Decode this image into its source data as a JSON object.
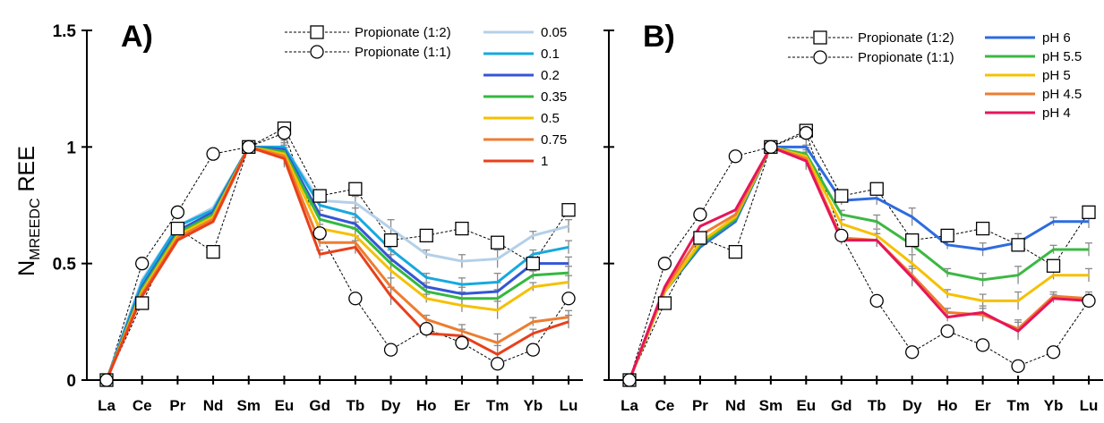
{
  "figure": {
    "ylabel_main": "N",
    "ylabel_sub": "MREEDC",
    "ylabel_tail": " REE"
  },
  "chart_data": [
    {
      "type": "line",
      "panel_label": "A)",
      "categories": [
        "La",
        "Ce",
        "Pr",
        "Nd",
        "Sm",
        "Eu",
        "Gd",
        "Tb",
        "Dy",
        "Ho",
        "Er",
        "Tm",
        "Yb",
        "Lu"
      ],
      "ylim": [
        0,
        1.5
      ],
      "yticks": [
        0,
        0.5,
        1,
        1.5
      ],
      "ytick_labels": [
        "0",
        "0.5",
        "1",
        "1.5"
      ],
      "legend_position": "top-right",
      "reference_series": [
        {
          "name": "Propionate (1:2)",
          "marker": "square",
          "values": [
            0,
            0.33,
            0.65,
            0.55,
            1.0,
            1.08,
            0.79,
            0.82,
            0.6,
            0.62,
            0.65,
            0.59,
            0.5,
            0.73
          ]
        },
        {
          "name": "Propionate (1:1)",
          "marker": "circle",
          "values": [
            0,
            0.5,
            0.72,
            0.97,
            1.0,
            1.06,
            0.63,
            0.35,
            0.13,
            0.22,
            0.16,
            0.07,
            0.13,
            0.35
          ]
        }
      ],
      "series": [
        {
          "name": "0.05",
          "color": "#b4d0e8",
          "values": [
            0,
            0.43,
            0.66,
            0.74,
            1.0,
            1.0,
            0.77,
            0.76,
            0.65,
            0.54,
            0.51,
            0.52,
            0.62,
            0.66
          ]
        },
        {
          "name": "0.1",
          "color": "#17a9df",
          "values": [
            0,
            0.42,
            0.66,
            0.73,
            1.0,
            1.0,
            0.75,
            0.71,
            0.56,
            0.44,
            0.41,
            0.42,
            0.54,
            0.57
          ]
        },
        {
          "name": "0.2",
          "color": "#3456d6",
          "values": [
            0,
            0.4,
            0.64,
            0.72,
            1.0,
            0.99,
            0.71,
            0.67,
            0.52,
            0.4,
            0.37,
            0.38,
            0.5,
            0.5
          ]
        },
        {
          "name": "0.35",
          "color": "#34b93e",
          "values": [
            0,
            0.39,
            0.63,
            0.71,
            1.0,
            0.98,
            0.69,
            0.65,
            0.5,
            0.38,
            0.35,
            0.35,
            0.45,
            0.46
          ]
        },
        {
          "name": "0.5",
          "color": "#f6c000",
          "values": [
            0,
            0.38,
            0.62,
            0.7,
            1.0,
            0.97,
            0.65,
            0.62,
            0.47,
            0.35,
            0.32,
            0.3,
            0.4,
            0.42
          ]
        },
        {
          "name": "0.75",
          "color": "#ed7d31",
          "values": [
            0,
            0.37,
            0.61,
            0.69,
            1.0,
            0.96,
            0.59,
            0.59,
            0.4,
            0.26,
            0.21,
            0.16,
            0.25,
            0.27
          ]
        },
        {
          "name": "1",
          "color": "#e8401a",
          "values": [
            0,
            0.36,
            0.6,
            0.68,
            1.0,
            0.95,
            0.54,
            0.57,
            0.36,
            0.2,
            0.19,
            0.11,
            0.2,
            0.25
          ]
        }
      ]
    },
    {
      "type": "line",
      "panel_label": "B)",
      "categories": [
        "La",
        "Ce",
        "Pr",
        "Nd",
        "Sm",
        "Eu",
        "Gd",
        "Tb",
        "Dy",
        "Ho",
        "Er",
        "Tm",
        "Yb",
        "Lu"
      ],
      "ylim": [
        0,
        1.5
      ],
      "yticks": [
        0,
        0.5,
        1,
        1.5
      ],
      "legend_position": "top-right",
      "reference_series": [
        {
          "name": "Propionate (1:2)",
          "marker": "square",
          "values": [
            0,
            0.33,
            0.61,
            0.55,
            1.0,
            1.07,
            0.79,
            0.82,
            0.6,
            0.62,
            0.65,
            0.58,
            0.49,
            0.72
          ]
        },
        {
          "name": "Propionate (1:1)",
          "marker": "circle",
          "values": [
            0,
            0.5,
            0.71,
            0.96,
            1.0,
            1.06,
            0.62,
            0.34,
            0.12,
            0.21,
            0.15,
            0.06,
            0.12,
            0.34
          ]
        }
      ],
      "series": [
        {
          "name": "pH 6",
          "color": "#2e6bdf",
          "values": [
            0,
            0.38,
            0.57,
            0.68,
            1.0,
            1.0,
            0.77,
            0.78,
            0.7,
            0.58,
            0.56,
            0.59,
            0.68,
            0.68
          ]
        },
        {
          "name": "pH 5.5",
          "color": "#3cb843",
          "values": [
            0,
            0.38,
            0.58,
            0.69,
            1.0,
            0.97,
            0.71,
            0.68,
            0.58,
            0.46,
            0.43,
            0.45,
            0.56,
            0.56
          ]
        },
        {
          "name": "pH 5",
          "color": "#f6c000",
          "values": [
            0,
            0.38,
            0.59,
            0.7,
            1.0,
            0.96,
            0.67,
            0.62,
            0.5,
            0.37,
            0.34,
            0.34,
            0.45,
            0.45
          ]
        },
        {
          "name": "pH 4.5",
          "color": "#ed7d31",
          "values": [
            0,
            0.39,
            0.62,
            0.71,
            1.0,
            0.95,
            0.61,
            0.6,
            0.45,
            0.29,
            0.28,
            0.22,
            0.36,
            0.35
          ]
        },
        {
          "name": "pH 4",
          "color": "#e6155a",
          "values": [
            0,
            0.4,
            0.66,
            0.73,
            1.0,
            0.94,
            0.6,
            0.6,
            0.44,
            0.27,
            0.29,
            0.21,
            0.35,
            0.34
          ]
        }
      ]
    }
  ]
}
